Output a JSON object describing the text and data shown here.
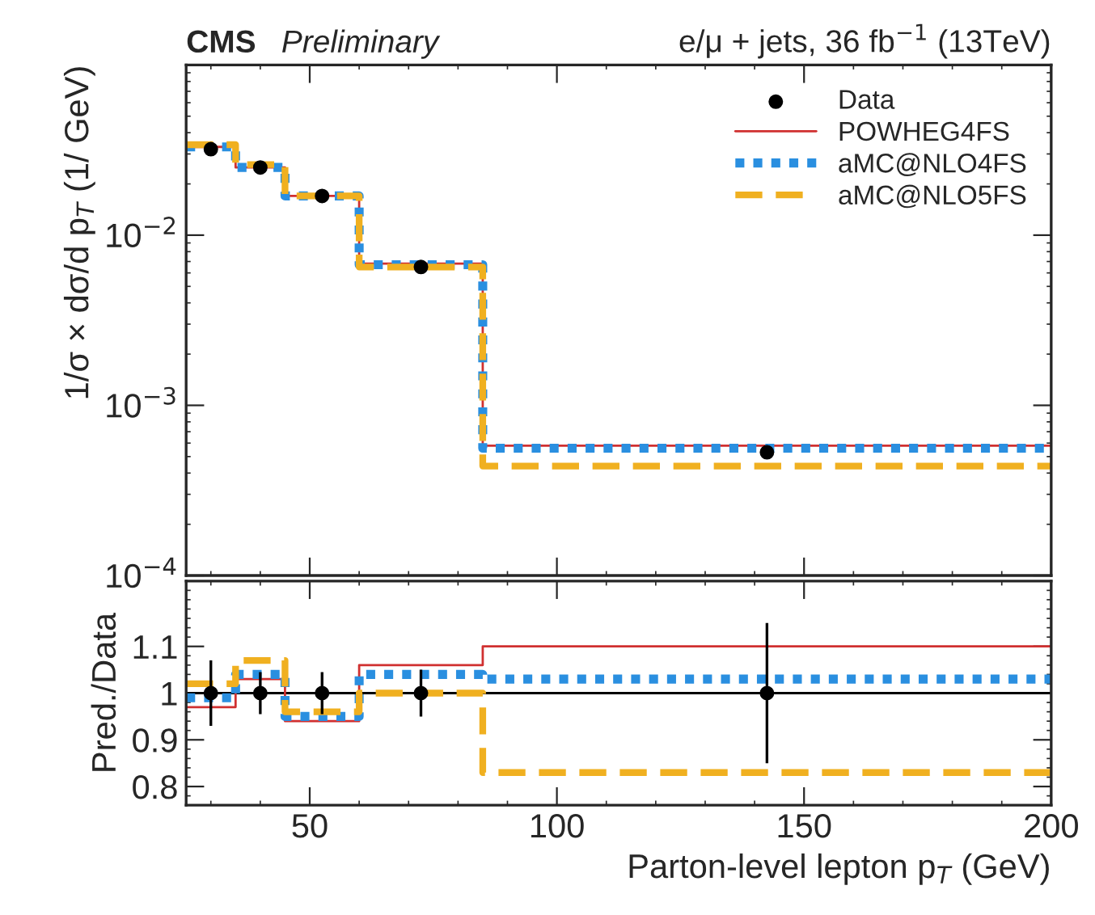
{
  "chart_data": [
    {
      "type": "step",
      "ylabel": "1/σ × dσ/d p$_{T}$ (1/ GeV)",
      "annotations": [
        "CMS",
        "Preliminary",
        "e/μ + jets, 36 fb$^{−1}$ (13TeV)"
      ],
      "xlim": [
        25,
        200
      ],
      "xticks": [
        50,
        100,
        150,
        200
      ],
      "ylim": [
        0.0001,
        0.1
      ],
      "log": "y",
      "yticks": [
        {
          "value": 0.0001,
          "label": "10$^{−4}$"
        },
        {
          "value": 0.001,
          "label": "10$^{−3}$"
        },
        {
          "value": 0.01,
          "label": "10$^{−2}$"
        }
      ],
      "tick_labels": "y",
      "legend": "top right",
      "series": [
        {
          "name": "Data",
          "type": "scatter",
          "color": "#000000",
          "marker": "circle",
          "x": [
            30,
            40,
            52.5,
            72.5,
            142.5
          ],
          "values": [
            0.032,
            0.025,
            0.017,
            0.0065,
            0.00053
          ]
        },
        {
          "name": "POWHEG4FS",
          "color": "#d03030",
          "line_style": "solid",
          "x": [
            25,
            35,
            45,
            60,
            85,
            200
          ],
          "values": [
            0.033,
            0.025,
            0.017,
            0.0068,
            0.00058,
            0.00058
          ]
        },
        {
          "name": "aMC@NLO4FS",
          "color": "#2a8fe0",
          "line_style": "dotted",
          "x": [
            25,
            35,
            45,
            60,
            85,
            200
          ],
          "values": [
            0.033,
            0.025,
            0.017,
            0.0067,
            0.00056,
            0.00056
          ]
        },
        {
          "name": "aMC@NLO5FS",
          "color": "#f0b020",
          "line_style": "dashed",
          "x": [
            25,
            35,
            45,
            60,
            85,
            200
          ],
          "values": [
            0.034,
            0.026,
            0.017,
            0.0065,
            0.00044,
            0.00044
          ]
        }
      ]
    },
    {
      "type": "step",
      "xlabel": "Parton-level lepton p$_{T}$ (GeV)",
      "ylabel": "Pred./Data",
      "xlim": [
        25,
        200
      ],
      "xticks": [
        50,
        100,
        150,
        200
      ],
      "ylim": [
        0.76,
        1.24
      ],
      "yticks": [
        0.8,
        0.9,
        1,
        1.1
      ],
      "ref_lines": [
        {
          "axis": "y",
          "value": 1,
          "color": "#000000"
        }
      ],
      "series": [
        {
          "type": "scatter",
          "color": "#000000",
          "marker": "circle",
          "x": [
            30,
            40,
            52.5,
            72.5,
            142.5
          ],
          "values": [
            1,
            1,
            1,
            1,
            1
          ],
          "errors": [
            0.07,
            0.045,
            0.045,
            0.05,
            0.15
          ]
        },
        {
          "color": "#d03030",
          "line_style": "solid",
          "x": [
            25,
            35,
            45,
            60,
            85,
            200
          ],
          "values": [
            0.97,
            1.03,
            0.94,
            1.06,
            1.1,
            1.1
          ]
        },
        {
          "color": "#2a8fe0",
          "line_style": "dotted",
          "x": [
            25,
            35,
            45,
            60,
            85,
            200
          ],
          "values": [
            0.99,
            1.04,
            0.95,
            1.04,
            1.03,
            1.03
          ]
        },
        {
          "color": "#f0b020",
          "line_style": "dashed",
          "x": [
            25,
            35,
            45,
            60,
            85,
            200
          ],
          "values": [
            1.02,
            1.07,
            0.96,
            1.0,
            0.83,
            0.83
          ]
        }
      ]
    }
  ]
}
